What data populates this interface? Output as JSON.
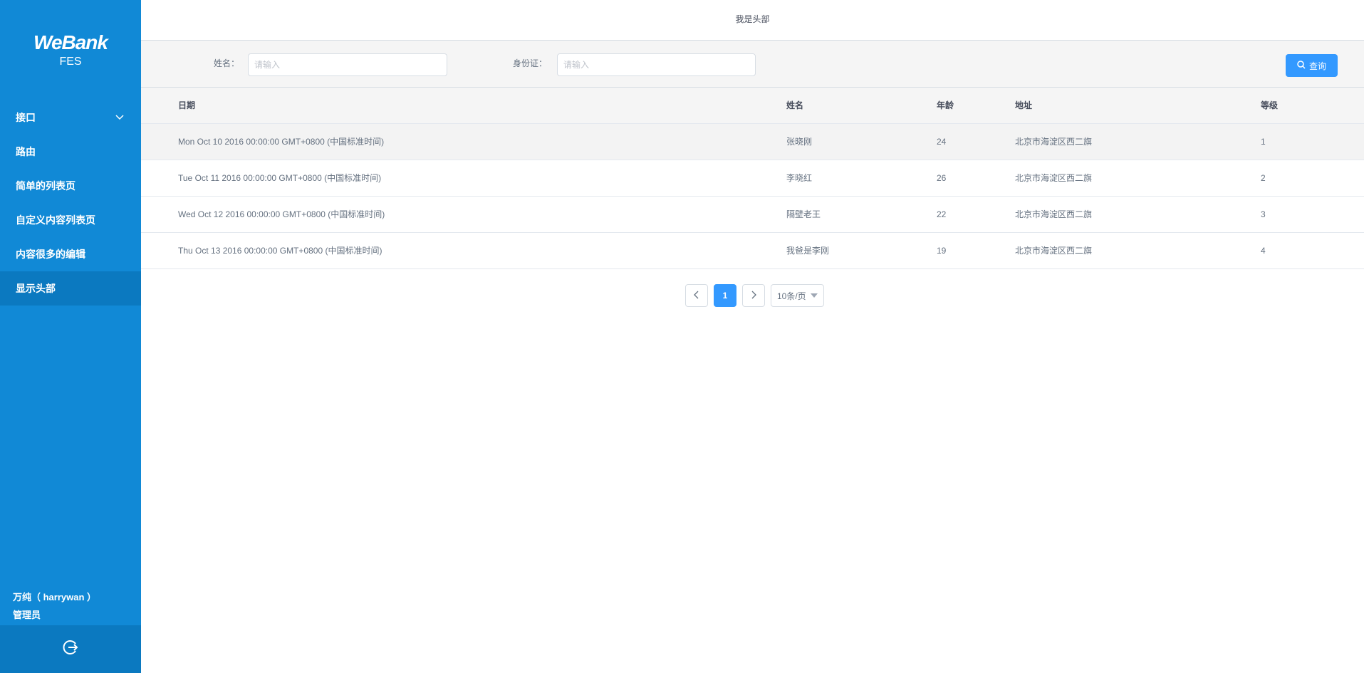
{
  "sidebar": {
    "logo": "WeBank",
    "subtitle": "FES",
    "items": [
      {
        "label": "接口",
        "expandable": true
      },
      {
        "label": "路由"
      },
      {
        "label": "简单的列表页"
      },
      {
        "label": "自定义内容列表页"
      },
      {
        "label": "内容很多的编辑"
      },
      {
        "label": "显示头部",
        "active": true
      }
    ],
    "user_name": "万纯（ harrywan ）",
    "user_role": "管理员",
    "logout_icon": "logout-icon"
  },
  "header": {
    "title": "我是头部"
  },
  "filter": {
    "name_label": "姓名：",
    "name_placeholder": "请输入",
    "id_label": "身份证：",
    "id_placeholder": "请输入",
    "search_label": "查询"
  },
  "table": {
    "columns": [
      "日期",
      "姓名",
      "年龄",
      "地址",
      "等级"
    ],
    "rows": [
      [
        "Mon Oct 10 2016 00:00:00 GMT+0800 (中国标准时间)",
        "张晓刚",
        "24",
        "北京市海淀区西二旗",
        "1"
      ],
      [
        "Tue Oct 11 2016 00:00:00 GMT+0800 (中国标准时间)",
        "李晓红",
        "26",
        "北京市海淀区西二旗",
        "2"
      ],
      [
        "Wed Oct 12 2016 00:00:00 GMT+0800 (中国标准时间)",
        "隔壁老王",
        "22",
        "北京市海淀区西二旗",
        "3"
      ],
      [
        "Thu Oct 13 2016 00:00:00 GMT+0800 (中国标准时间)",
        "我爸是李刚",
        "19",
        "北京市海淀区西二旗",
        "4"
      ]
    ]
  },
  "pagination": {
    "current": "1",
    "page_size": "10条/页"
  },
  "colors": {
    "sidebar": "#1189d6",
    "sidebar_active": "#0b79c0",
    "primary": "#3399ff"
  }
}
